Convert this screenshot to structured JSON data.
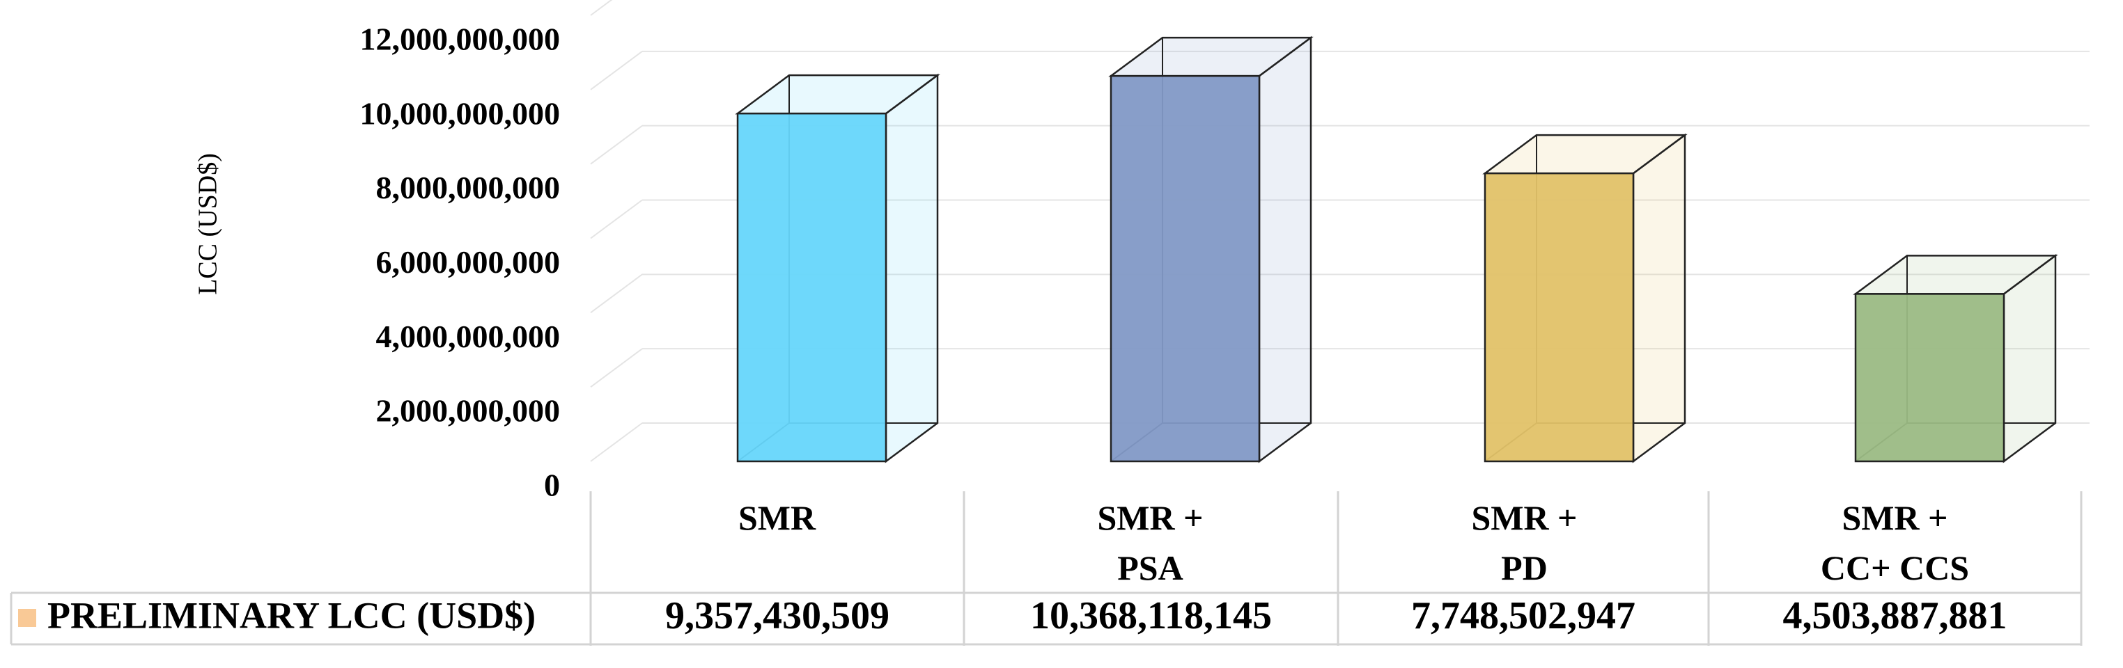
{
  "chart_data": {
    "type": "bar3d",
    "y_label": "LCC (USD$)",
    "categories": [
      "SMR",
      "SMR +\nPSA",
      "SMR +\nPD",
      "SMR +\nCC+ CCS"
    ],
    "values": [
      9357430509,
      10368118145,
      7748502947,
      4503887881
    ],
    "value_labels": [
      "9,357,430,509",
      "10,368,118,145",
      "7,748,502,947",
      "4,503,887,881"
    ],
    "colors": [
      "#66d6fb",
      "#8299c6",
      "#e2c268",
      "#9bbb84"
    ],
    "legend_label": "PRELIMINARY LCC (USD$)",
    "legend_color": "#f9c996",
    "ylim": [
      0,
      12000000000
    ],
    "yticks": [
      0,
      {
        "value": 2000000000,
        "label": "2,000,000,000"
      },
      {
        "value": 4000000000,
        "label": "4,000,000,000"
      },
      {
        "value": 6000000000,
        "label": "6,000,000,000"
      },
      {
        "value": 8000000000,
        "label": "8,000,000,000"
      },
      {
        "value": 10000000000,
        "label": "10,000,000,000"
      },
      {
        "value": 12000000000,
        "label": "12,000,000,000"
      }
    ],
    "grid": true
  }
}
